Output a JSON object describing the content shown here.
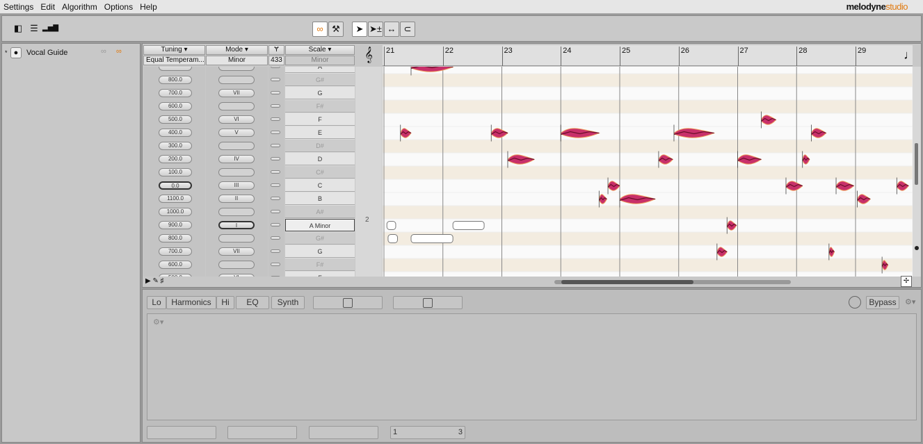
{
  "menu": [
    "Settings",
    "Edit",
    "Algorithm",
    "Options",
    "Help"
  ],
  "logo": {
    "brand": "melodyne",
    "edition": "studio"
  },
  "track": {
    "name": "Vocal Guide"
  },
  "header": {
    "tuning_label": "Tuning",
    "tuning_value": "Equal Temperam...",
    "mode_label": "Mode",
    "mode_value": "Minor",
    "ref_label": "Ɏ",
    "ref_value": "433",
    "scale_label": "Scale",
    "scale_value": "Minor"
  },
  "rows": [
    {
      "tuning": "",
      "mode": "",
      "scale": "A"
    },
    {
      "tuning": "800.0",
      "mode": "",
      "scale": "G#"
    },
    {
      "tuning": "700.0",
      "mode": "VII",
      "scale": "G"
    },
    {
      "tuning": "600.0",
      "mode": "",
      "scale": "F#"
    },
    {
      "tuning": "500.0",
      "mode": "VI",
      "scale": "F"
    },
    {
      "tuning": "400.0",
      "mode": "V",
      "scale": "E"
    },
    {
      "tuning": "300.0",
      "mode": "",
      "scale": "D#"
    },
    {
      "tuning": "200.0",
      "mode": "IV",
      "scale": "D"
    },
    {
      "tuning": "100.0",
      "mode": "",
      "scale": "C#"
    },
    {
      "tuning": "0.0",
      "mode": "III",
      "scale": "C"
    },
    {
      "tuning": "1100.0",
      "mode": "II",
      "scale": "B"
    },
    {
      "tuning": "1000.0",
      "mode": "",
      "scale": "A#"
    },
    {
      "tuning": "900.0",
      "mode": "I",
      "scale": "A Minor"
    },
    {
      "tuning": "800.0",
      "mode": "",
      "scale": "G#"
    },
    {
      "tuning": "700.0",
      "mode": "VII",
      "scale": "G"
    },
    {
      "tuning": "600.0",
      "mode": "",
      "scale": "F#"
    },
    {
      "tuning": "500.0",
      "mode": "VI",
      "scale": "F"
    }
  ],
  "octave_label": "2",
  "bars": [
    "21",
    "22",
    "23",
    "24",
    "25",
    "26",
    "27",
    "28",
    "29"
  ],
  "pitches": [
    "A4",
    "G#4",
    "G4",
    "F#4",
    "F4",
    "E4",
    "D#4",
    "D4",
    "C#4",
    "C4",
    "B3",
    "A#3",
    "A3",
    "G#3",
    "G3",
    "F#3",
    "F3"
  ],
  "notes": [
    {
      "start": 21.46,
      "end": 22.17,
      "pitch": "A4"
    },
    {
      "start": 21.28,
      "end": 21.46,
      "pitch": "E4"
    },
    {
      "start": 22.82,
      "end": 23.1,
      "pitch": "E4"
    },
    {
      "start": 23.1,
      "end": 23.55,
      "pitch": "D4"
    },
    {
      "start": 24.0,
      "end": 24.65,
      "pitch": "E4"
    },
    {
      "start": 24.65,
      "end": 24.78,
      "pitch": "B3"
    },
    {
      "start": 24.8,
      "end": 25.0,
      "pitch": "C4"
    },
    {
      "start": 25.0,
      "end": 25.6,
      "pitch": "B3"
    },
    {
      "start": 25.66,
      "end": 25.9,
      "pitch": "D4"
    },
    {
      "start": 25.92,
      "end": 26.6,
      "pitch": "E4"
    },
    {
      "start": 26.65,
      "end": 26.82,
      "pitch": "G3"
    },
    {
      "start": 26.82,
      "end": 26.98,
      "pitch": "A3"
    },
    {
      "start": 27.0,
      "end": 27.4,
      "pitch": "D4"
    },
    {
      "start": 27.4,
      "end": 27.65,
      "pitch": "F4"
    },
    {
      "start": 27.82,
      "end": 28.1,
      "pitch": "C4"
    },
    {
      "start": 28.1,
      "end": 28.22,
      "pitch": "D4"
    },
    {
      "start": 28.25,
      "end": 28.5,
      "pitch": "E4"
    },
    {
      "start": 28.55,
      "end": 28.64,
      "pitch": "G3"
    },
    {
      "start": 28.67,
      "end": 28.97,
      "pitch": "C4"
    },
    {
      "start": 29.03,
      "end": 29.25,
      "pitch": "B3"
    },
    {
      "start": 29.45,
      "end": 29.55,
      "pitch": "F#3"
    },
    {
      "start": 29.7,
      "end": 29.9,
      "pitch": "C4"
    }
  ],
  "unselected_notes": [
    {
      "start": 21.05,
      "end": 21.2,
      "pitch": "A3"
    },
    {
      "start": 21.07,
      "end": 21.23,
      "pitch": "G#3"
    },
    {
      "start": 21.46,
      "end": 22.17,
      "pitch": "G#3"
    },
    {
      "start": 22.17,
      "end": 22.7,
      "pitch": "A3"
    }
  ],
  "bottom": {
    "lo": "Lo",
    "harmonics": "Harmonics",
    "hi": "Hi",
    "eq": "EQ",
    "synth": "Synth",
    "bypass": "Bypass",
    "page_start": "1",
    "page_end": "3"
  },
  "colors": {
    "note_fill": "#c8306a",
    "note_stroke": "#6a0f2a",
    "stripe": "#f3ece0",
    "accent": "#e07a10"
  }
}
